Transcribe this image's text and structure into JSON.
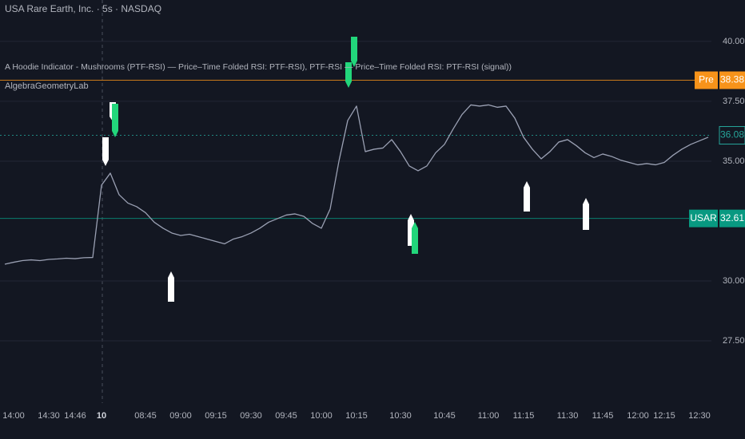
{
  "chart_data": {
    "type": "line",
    "title": "USA Rare Earth, Inc. · 5s · NASDAQ",
    "subtitle": "A Hoodie Indicator - Mushrooms  (PTF-RSI) — Price–Time Folded RSI: PTF-RSI), PTF-RSI — Price–Time Folded RSI: PTF-RSI (signal))",
    "annotation": "AlgebraGeometryLab",
    "color": "#9aa0b3",
    "categories": [
      null,
      "14:00",
      null,
      null,
      null,
      "14:30",
      null,
      null,
      "14:46",
      null,
      null,
      "10",
      null,
      null,
      null,
      null,
      "08:45",
      null,
      null,
      null,
      "09:00",
      null,
      null,
      null,
      "09:15",
      null,
      null,
      null,
      "09:30",
      null,
      null,
      null,
      "09:45",
      null,
      null,
      null,
      "10:00",
      null,
      null,
      null,
      "10:15",
      null,
      null,
      null,
      null,
      "10:30",
      null,
      null,
      null,
      null,
      "10:45",
      null,
      null,
      null,
      null,
      "11:00",
      null,
      null,
      null,
      "11:15",
      null,
      null,
      null,
      null,
      "11:30",
      null,
      null,
      null,
      "11:45",
      null,
      null,
      null,
      "12:00",
      null,
      null,
      "12:15",
      null,
      null,
      null,
      "12:30",
      null
    ],
    "values": [
      30.7,
      30.78,
      30.85,
      30.88,
      30.85,
      30.9,
      30.92,
      30.95,
      30.93,
      30.97,
      30.98,
      34.0,
      34.5,
      33.6,
      33.25,
      33.1,
      32.85,
      32.45,
      32.2,
      32.0,
      31.9,
      31.95,
      31.85,
      31.75,
      31.65,
      31.55,
      31.75,
      31.85,
      32.0,
      32.2,
      32.45,
      32.6,
      32.75,
      32.8,
      32.7,
      32.4,
      32.2,
      33.0,
      35.0,
      36.7,
      37.3,
      35.4,
      35.5,
      35.55,
      35.9,
      35.4,
      34.8,
      34.6,
      34.8,
      35.35,
      35.7,
      36.35,
      36.95,
      37.35,
      37.3,
      37.35,
      37.25,
      37.3,
      36.8,
      36.0,
      35.5,
      35.1,
      35.4,
      35.8,
      35.9,
      35.65,
      35.35,
      35.15,
      35.3,
      35.2,
      35.05,
      34.95,
      34.85,
      34.9,
      34.85,
      34.95,
      35.25,
      35.5,
      35.7,
      35.85,
      36.0
    ],
    "ylim": [
      25.4,
      41.73
    ],
    "yticks": [
      {
        "value": 27.5,
        "label": "27.50"
      },
      {
        "value": 30,
        "label": "30.00"
      },
      {
        "value": 35,
        "label": "35.00"
      },
      {
        "value": 37.5,
        "label": "37.50"
      },
      {
        "value": 40,
        "label": "40.00"
      }
    ],
    "grid": true,
    "price_labels": [
      {
        "label": "Pre",
        "value": 38.38,
        "color": "#f7931a"
      },
      {
        "value": 36.08,
        "color": "#26a69a"
      },
      {
        "label": "USAR",
        "value": 32.61,
        "color": "#089981"
      }
    ]
  }
}
